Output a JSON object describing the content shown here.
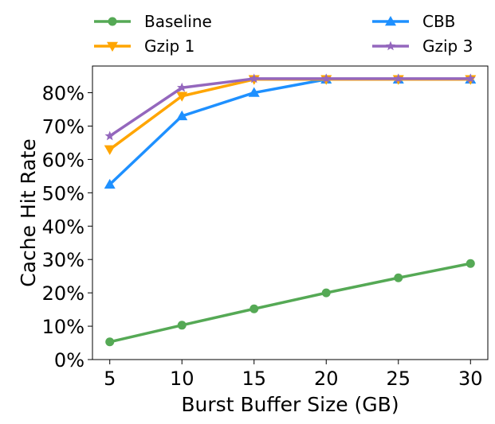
{
  "chart_data": {
    "type": "line",
    "title": "",
    "xlabel": "Burst Buffer Size (GB)",
    "ylabel": "Cache Hit Rate",
    "x": [
      5,
      10,
      15,
      20,
      25,
      30
    ],
    "x_ticks": [
      "5",
      "10",
      "15",
      "20",
      "25",
      "30"
    ],
    "xlim": [
      3.8,
      31.2
    ],
    "y_ticks": [
      "0%",
      "10%",
      "20%",
      "30%",
      "40%",
      "50%",
      "60%",
      "70%",
      "80%"
    ],
    "ylim": [
      0,
      88
    ],
    "y_unit": "percent",
    "grid": false,
    "legend": {
      "placement": "above plot, two columns"
    },
    "series": [
      {
        "name": "Baseline",
        "color": "#55a955",
        "marker": "circle",
        "values": [
          5.3,
          10.3,
          15.2,
          20.0,
          24.5,
          28.8
        ]
      },
      {
        "name": "Gzip 1",
        "color": "#ffa500",
        "marker": "triangle-down",
        "values": [
          63.0,
          79.0,
          84.0,
          84.0,
          84.0,
          84.0
        ]
      },
      {
        "name": "CBB",
        "color": "#1e90ff",
        "marker": "triangle-up",
        "values": [
          52.5,
          73.0,
          80.0,
          84.0,
          84.0,
          84.0
        ]
      },
      {
        "name": "Gzip 3",
        "color": "#9467bd",
        "marker": "star",
        "values": [
          67.0,
          81.5,
          84.2,
          84.2,
          84.2,
          84.2
        ]
      }
    ]
  }
}
